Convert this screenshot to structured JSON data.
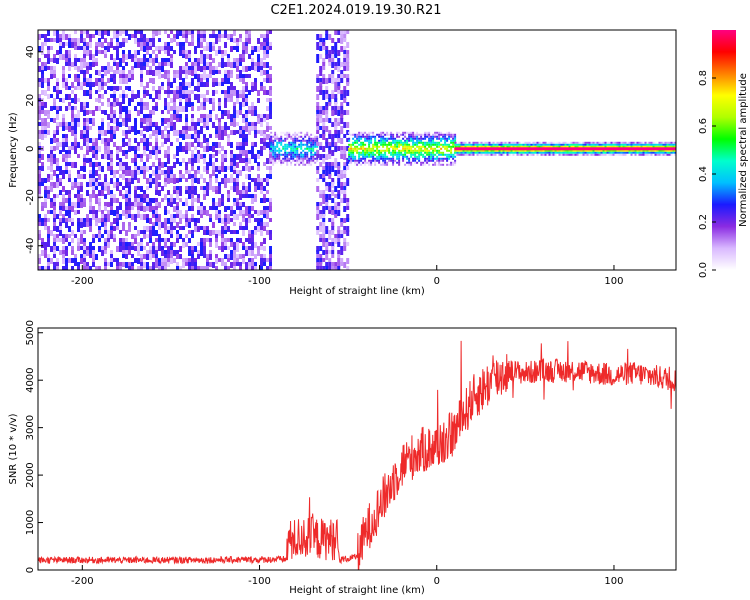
{
  "title": "C2E1.2024.019.19.30.R21",
  "chart_data": [
    {
      "type": "heatmap",
      "xlabel": "Height of straight line (km)",
      "ylabel": "Frequency (Hz)",
      "xlim": [
        -225,
        135
      ],
      "ylim": [
        -50,
        49
      ],
      "x_ticks": [
        -200,
        -100,
        0,
        100
      ],
      "x_tick_labels": [
        "-200",
        "-100",
        "0",
        "100"
      ],
      "y_ticks": [
        -40,
        -20,
        0,
        20,
        40
      ],
      "y_tick_labels": [
        "-40",
        "-20",
        "0",
        "20",
        "40"
      ],
      "colorbar": {
        "label": "Normalized spectral amplitude",
        "range": [
          0,
          1
        ],
        "ticks": [
          0.0,
          0.2,
          0.4,
          0.6,
          0.8
        ],
        "tick_labels": [
          "0.0",
          "0.2",
          "0.4",
          "0.6",
          "0.8"
        ],
        "colors": [
          "#ffffff",
          "#d9b8ff",
          "#8a2be2",
          "#1a1aff",
          "#00bfff",
          "#00ffcc",
          "#00ff00",
          "#b0ff00",
          "#ffff00",
          "#ff8000",
          "#ff0000",
          "#ff0080"
        ]
      },
      "regions": [
        {
          "x_range": [
            -225,
            -94
          ],
          "description": "broadband noise",
          "level": 0.15
        },
        {
          "x_range": [
            -94,
            -68
          ],
          "description": "narrowband signal near 0 Hz",
          "level": 0.45
        },
        {
          "x_range": [
            -68,
            -50
          ],
          "description": "broadband noise",
          "level": 0.15
        },
        {
          "x_range": [
            -50,
            10
          ],
          "description": "narrowband signal near 0 Hz",
          "level": 0.7
        },
        {
          "x_range": [
            10,
            135
          ],
          "description": "strong line at 0 Hz",
          "level": 0.95
        }
      ],
      "grid": false
    },
    {
      "type": "line",
      "xlabel": "Height of straight line (km)",
      "ylabel": "SNR (10 * v/v)",
      "xlim": [
        -225,
        135
      ],
      "ylim": [
        0,
        5100
      ],
      "x_ticks": [
        -200,
        -100,
        0,
        100
      ],
      "x_tick_labels": [
        "-200",
        "-100",
        "0",
        "100"
      ],
      "y_ticks": [
        0,
        1000,
        2000,
        3000,
        4000,
        5000
      ],
      "y_tick_labels": [
        "0",
        "1000",
        "2000",
        "3000",
        "4000",
        "5000"
      ],
      "color": "#ee2a2a",
      "series": [
        {
          "x": [
            -225,
            -200,
            -150,
            -100,
            -85,
            -84,
            -75,
            -65,
            -56,
            -55,
            -45,
            -40,
            -30,
            -20,
            -10,
            0,
            10,
            20,
            30,
            40,
            50,
            60,
            70,
            80,
            90,
            100,
            110,
            120,
            135
          ],
          "values": [
            180,
            180,
            180,
            190,
            200,
            600,
            700,
            650,
            650,
            180,
            250,
            800,
            1500,
            2200,
            2500,
            2600,
            2900,
            3600,
            3950,
            4200,
            4150,
            4200,
            4200,
            4200,
            4150,
            4100,
            4150,
            4100,
            4000
          ]
        }
      ],
      "grid": false
    }
  ]
}
